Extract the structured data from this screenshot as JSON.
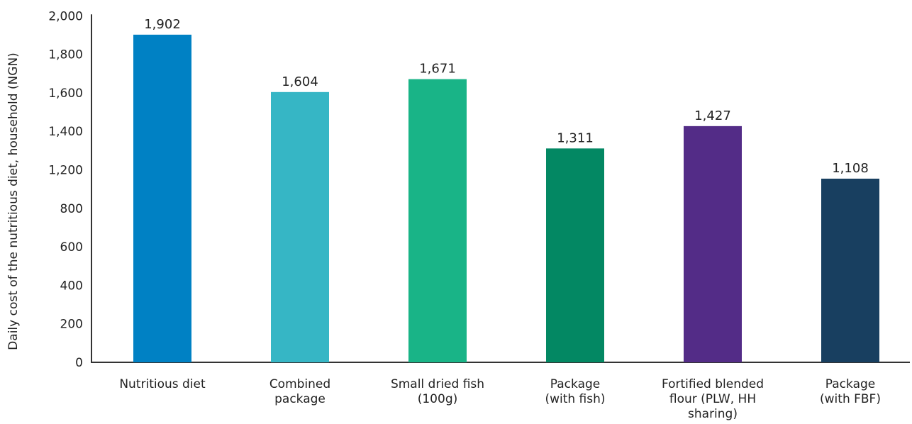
{
  "chart_data": {
    "type": "bar",
    "title": "",
    "xlabel": "",
    "ylabel": "Daily cost of the nutritious diet, household (NGN)",
    "yticks": [
      "0",
      "200",
      "400",
      "600",
      "800",
      "1,200",
      "1,400",
      "1,600",
      "1,800",
      "2,000"
    ],
    "categories": [
      "Nutritious diet",
      "Combined package",
      "Small dried fish (100g)",
      "Package (with fish)",
      "Fortified blended flour (PLW, HH sharing)",
      "Package (with FBF)"
    ],
    "category_lines": [
      [
        "Nutritious diet"
      ],
      [
        "Combined",
        "package"
      ],
      [
        "Small dried fish",
        "(100g)"
      ],
      [
        "Package",
        "(with fish)"
      ],
      [
        "Fortified blended",
        "flour (PLW, HH",
        "sharing)"
      ],
      [
        "Package",
        "(with FBF)"
      ]
    ],
    "values": [
      1902,
      1604,
      1671,
      1311,
      1427,
      1108
    ],
    "value_labels": [
      "1,902",
      "1,604",
      "1,671",
      "1,311",
      "1,427",
      "1,108"
    ],
    "colors": [
      "#0081c4",
      "#36b6c5",
      "#19b487",
      "#038863",
      "#532c87",
      "#183f60"
    ],
    "grid": false,
    "legend": "none"
  }
}
